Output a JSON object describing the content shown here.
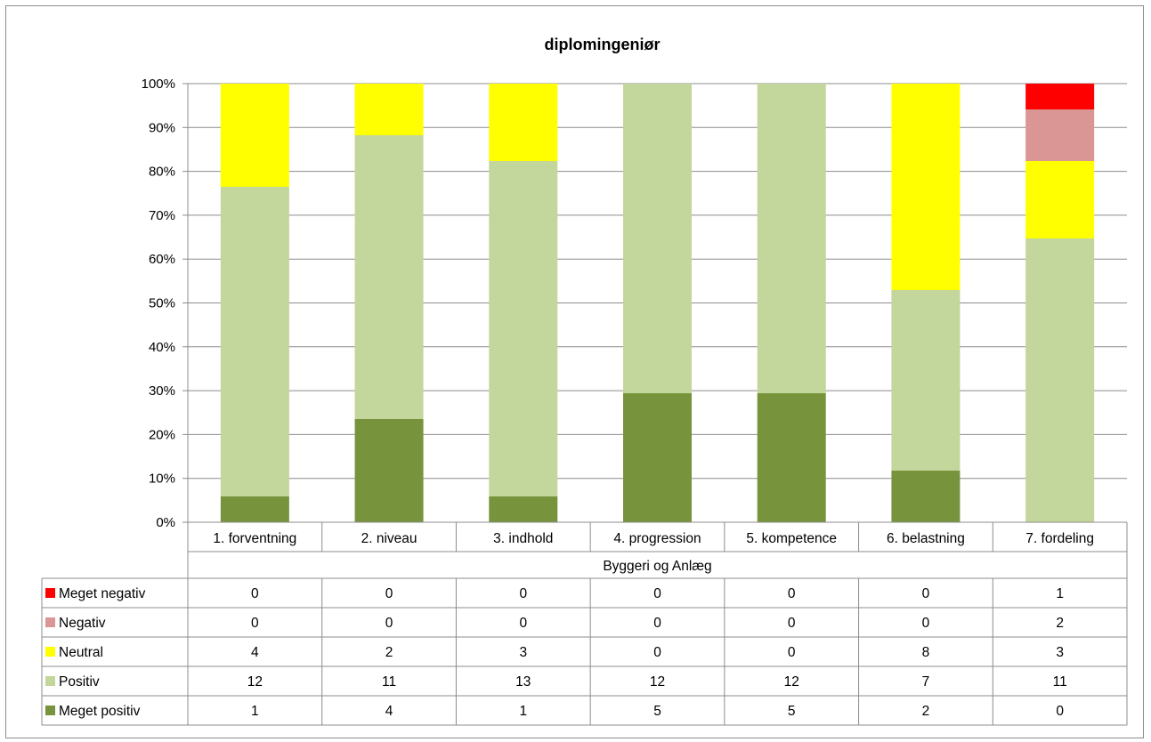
{
  "chart_data": {
    "type": "bar",
    "stacked": true,
    "normalized": true,
    "title": "diplomingeniør",
    "group_label": "Byggeri og Anlæg",
    "categories": [
      "1. forventning",
      "2. niveau",
      "3. indhold",
      "4. progression",
      "5. kompetence",
      "6. belastning",
      "7. fordeling"
    ],
    "series": [
      {
        "name": "Meget positiv",
        "color": "#77933c",
        "values": [
          1,
          4,
          1,
          5,
          5,
          2,
          0
        ]
      },
      {
        "name": "Positiv",
        "color": "#c3d69b",
        "values": [
          12,
          11,
          13,
          12,
          12,
          7,
          11
        ]
      },
      {
        "name": "Neutral",
        "color": "#ffff00",
        "values": [
          4,
          2,
          3,
          0,
          0,
          8,
          3
        ]
      },
      {
        "name": "Negativ",
        "color": "#d99694",
        "values": [
          0,
          0,
          0,
          0,
          0,
          0,
          2
        ]
      },
      {
        "name": "Meget negativ",
        "color": "#ff0000",
        "values": [
          0,
          0,
          0,
          0,
          0,
          0,
          1
        ]
      }
    ],
    "table_order": [
      "Meget negativ",
      "Negativ",
      "Neutral",
      "Positiv",
      "Meget positiv"
    ],
    "yticks": [
      "0%",
      "10%",
      "20%",
      "30%",
      "40%",
      "50%",
      "60%",
      "70%",
      "80%",
      "90%",
      "100%"
    ],
    "ylim": [
      0,
      100
    ],
    "grid": true,
    "legend": "data-table"
  }
}
